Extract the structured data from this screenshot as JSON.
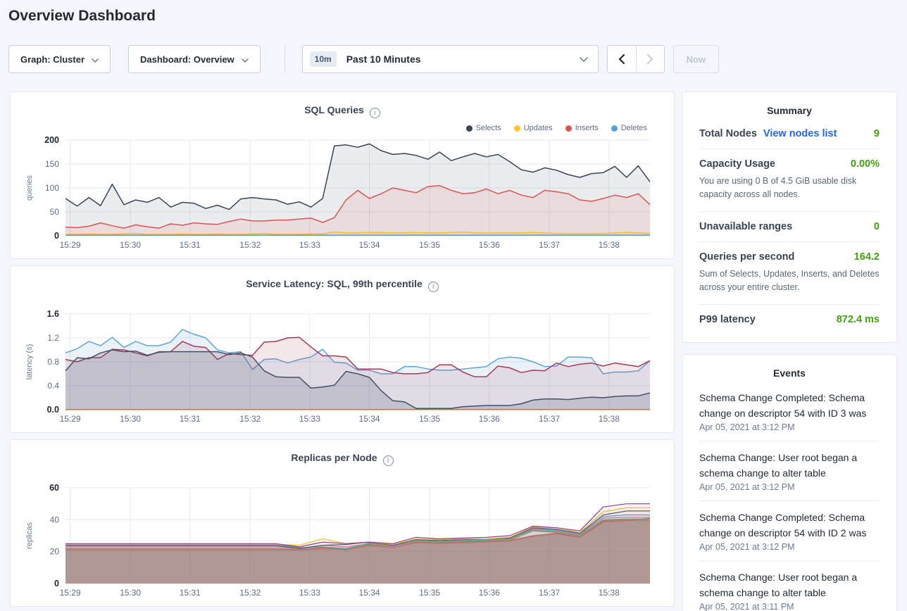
{
  "page": {
    "title": "Overview Dashboard"
  },
  "colors": {
    "accent_green": "#42a10c",
    "link_blue": "#2567ec",
    "selects_navy": "#394455",
    "updates_yellow": "#ffc333",
    "inserts_red": "#e05252",
    "deletes_blue": "#56a0d9"
  },
  "toolbar": {
    "graph": "Graph: Cluster",
    "dashboard": "Dashboard: Overview",
    "range_badge": "10m",
    "range_label": "Past 10 Minutes",
    "now": "Now"
  },
  "summary": {
    "title": "Summary",
    "total_nodes_label": "Total Nodes",
    "view_nodes_link": "View nodes list",
    "total_nodes_value": "9",
    "capacity_label": "Capacity Usage",
    "capacity_value": "0.00%",
    "capacity_desc": "You are using 0 B of 4.5 GiB usable disk capacity across all nodes.",
    "unavailable_label": "Unavailable ranges",
    "unavailable_value": "0",
    "qps_label": "Queries per second",
    "qps_value": "164.2",
    "qps_desc": "Sum of Selects, Updates, Inserts, and Deletes across your entire cluster.",
    "p99_label": "P99 latency",
    "p99_value": "872.4 ms"
  },
  "events": {
    "title": "Events",
    "items": [
      {
        "text": "Schema Change Completed: Schema change on descriptor 54 with ID 3 was",
        "time": "Apr 05, 2021 at 3:12 PM"
      },
      {
        "text": "Schema Change: User root began a schema change to alter table",
        "time": "Apr 05, 2021 at 3:12 PM"
      },
      {
        "text": "Schema Change Completed: Schema change on descriptor 54 with ID 2 was",
        "time": "Apr 05, 2021 at 3:12 PM"
      },
      {
        "text": "Schema Change: User root began a schema change to alter table",
        "time": "Apr 05, 2021 at 3:11 PM"
      }
    ]
  },
  "chart_data": [
    {
      "type": "area",
      "title": "SQL Queries",
      "ylabel": "queries",
      "ylim": [
        0,
        200
      ],
      "yticks": [
        0,
        50,
        100,
        150,
        200
      ],
      "ytick_labels": [
        "0",
        "50",
        "100",
        "150",
        "200"
      ],
      "legend_position": "top-right",
      "grid": true,
      "xticks": [
        {
          "label": "15:29",
          "f": 0.008
        },
        {
          "label": "15:30",
          "f": 0.111
        },
        {
          "label": "15:31",
          "f": 0.213
        },
        {
          "label": "15:32",
          "f": 0.316
        },
        {
          "label": "15:33",
          "f": 0.418
        },
        {
          "label": "15:34",
          "f": 0.52
        },
        {
          "label": "15:35",
          "f": 0.623
        },
        {
          "label": "15:36",
          "f": 0.725
        },
        {
          "label": "15:37",
          "f": 0.828
        },
        {
          "label": "15:38",
          "f": 0.93
        }
      ],
      "series": [
        {
          "name": "Selects",
          "color": "#394455",
          "fill": "rgba(57,68,85,0.10)",
          "values": [
            78,
            62,
            80,
            63,
            108,
            65,
            75,
            70,
            80,
            60,
            70,
            68,
            57,
            64,
            55,
            77,
            80,
            77,
            75,
            66,
            71,
            60,
            78,
            188,
            190,
            185,
            192,
            178,
            170,
            172,
            168,
            160,
            175,
            157,
            165,
            172,
            165,
            170,
            155,
            138,
            133,
            142,
            137,
            128,
            122,
            130,
            132,
            145,
            122,
            146,
            113
          ]
        },
        {
          "name": "Updates",
          "color": "#ffc333",
          "fill": "rgba(255,195,51,0.10)",
          "values": [
            3,
            3,
            4,
            3,
            3,
            4,
            5,
            3,
            3,
            3,
            4,
            3,
            3,
            4,
            3,
            3,
            4,
            5,
            3,
            3,
            3,
            4,
            4,
            8,
            6,
            6,
            7,
            7,
            6,
            6,
            7,
            6,
            6,
            7,
            8,
            6,
            6,
            6,
            6,
            6,
            7,
            6,
            5,
            5,
            5,
            5,
            5,
            6,
            7,
            6,
            5
          ]
        },
        {
          "name": "Inserts",
          "color": "#e05252",
          "fill": "rgba(224,82,82,0.10)",
          "values": [
            18,
            17,
            20,
            27,
            21,
            16,
            23,
            19,
            16,
            25,
            22,
            27,
            25,
            24,
            30,
            35,
            31,
            31,
            33,
            33,
            35,
            37,
            28,
            38,
            75,
            95,
            78,
            88,
            100,
            95,
            90,
            103,
            105,
            95,
            88,
            90,
            98,
            88,
            95,
            85,
            80,
            95,
            92,
            88,
            75,
            72,
            78,
            85,
            80,
            88,
            65
          ]
        },
        {
          "name": "Deletes",
          "color": "#56a0d9",
          "fill": "rgba(86,160,217,0.12)",
          "values": [
            1.5,
            1.5
          ]
        }
      ]
    },
    {
      "type": "area",
      "title": "Service Latency: SQL, 99th percentile",
      "ylabel": "latency (s)",
      "ylim": [
        0,
        1.6
      ],
      "yticks": [
        0,
        0.4,
        0.8,
        1.2,
        1.6
      ],
      "ytick_labels": [
        "0.0",
        "0.4",
        "0.8",
        "1.2",
        "1.6"
      ],
      "legend_position": "none",
      "grid": true,
      "xticks": [
        {
          "label": "15:29",
          "f": 0.008
        },
        {
          "label": "15:30",
          "f": 0.111
        },
        {
          "label": "15:31",
          "f": 0.213
        },
        {
          "label": "15:32",
          "f": 0.316
        },
        {
          "label": "15:33",
          "f": 0.418
        },
        {
          "label": "15:34",
          "f": 0.52
        },
        {
          "label": "15:35",
          "f": 0.623
        },
        {
          "label": "15:36",
          "f": 0.725
        },
        {
          "label": "15:37",
          "f": 0.828
        },
        {
          "label": "15:38",
          "f": 0.93
        }
      ],
      "series": [
        {
          "color": "#61a5d8",
          "fill": "rgba(97,165,216,0.14)",
          "values": [
            0.95,
            1.02,
            1.14,
            1.07,
            1.21,
            1.04,
            1.14,
            1.07,
            1.07,
            1.13,
            1.34,
            1.26,
            1.2,
            1.0,
            0.95,
            0.97,
            0.67,
            0.84,
            0.85,
            0.78,
            0.84,
            0.88,
            1.01,
            0.79,
            0.78,
            0.66,
            0.66,
            0.6,
            0.6,
            0.72,
            0.72,
            0.68,
            0.66,
            0.66,
            0.68,
            0.7,
            0.72,
            0.85,
            0.88,
            0.86,
            0.8,
            0.72,
            0.73,
            0.88,
            0.88,
            0.87,
            0.6,
            0.63,
            0.63,
            0.65,
            0.82
          ]
        },
        {
          "color": "#a33b56",
          "fill": "rgba(163,59,86,0.12)",
          "values": [
            0.84,
            0.8,
            0.87,
            0.87,
            1.01,
            1.0,
            0.95,
            0.9,
            0.97,
            0.97,
            1.14,
            1.06,
            1.04,
            0.84,
            0.94,
            0.92,
            0.91,
            1.13,
            1.14,
            1.2,
            1.21,
            1.05,
            0.9,
            0.9,
            0.88,
            0.68,
            0.68,
            0.68,
            0.62,
            0.6,
            0.6,
            0.62,
            0.75,
            0.75,
            0.63,
            0.55,
            0.55,
            0.73,
            0.7,
            0.62,
            0.66,
            0.65,
            0.78,
            0.72,
            0.76,
            0.78,
            0.73,
            0.78,
            0.75,
            0.72,
            0.82
          ]
        },
        {
          "color": "#435066",
          "fill": "rgba(67,80,102,0.18)",
          "values": [
            0.65,
            0.87,
            0.85,
            0.95,
            1.0,
            0.97,
            0.98,
            0.91,
            0.96,
            0.97,
            0.97,
            0.97,
            0.97,
            0.97,
            0.92,
            0.95,
            0.88,
            0.65,
            0.55,
            0.54,
            0.54,
            0.36,
            0.38,
            0.41,
            0.64,
            0.6,
            0.54,
            0.32,
            0.15,
            0.13,
            0.02,
            0.02,
            0.02,
            0.02,
            0.05,
            0.06,
            0.07,
            0.07,
            0.07,
            0.1,
            0.16,
            0.18,
            0.18,
            0.17,
            0.19,
            0.21,
            0.2,
            0.22,
            0.23,
            0.23,
            0.28
          ]
        },
        {
          "color": "#c9703f",
          "values": [
            0.004,
            0.004
          ]
        }
      ]
    },
    {
      "type": "area",
      "title": "Replicas per Node",
      "ylabel": "replicas",
      "ylim": [
        0,
        60
      ],
      "yticks": [
        0,
        20,
        40,
        60
      ],
      "ytick_labels": [
        "0",
        "20",
        "40",
        "60"
      ],
      "legend_position": "none",
      "grid": true,
      "xticks": [
        {
          "label": "15:29",
          "f": 0.008
        },
        {
          "label": "15:30",
          "f": 0.111
        },
        {
          "label": "15:31",
          "f": 0.213
        },
        {
          "label": "15:32",
          "f": 0.316
        },
        {
          "label": "15:33",
          "f": 0.418
        },
        {
          "label": "15:34",
          "f": 0.52
        },
        {
          "label": "15:35",
          "f": 0.623
        },
        {
          "label": "15:36",
          "f": 0.725
        },
        {
          "label": "15:37",
          "f": 0.828
        },
        {
          "label": "15:38",
          "f": 0.93
        }
      ],
      "series": [
        {
          "color": "#a98a7e",
          "w": 1.2,
          "fill": "rgba(122,75,66,0.45)",
          "values": [
            21,
            21,
            21,
            21,
            21,
            21,
            21,
            21,
            21,
            21,
            21,
            21.5,
            21.5,
            23.5,
            23,
            25.5,
            25,
            25.5,
            26,
            26.5,
            29.5,
            31,
            29,
            38.5,
            39.5,
            39.5
          ]
        },
        {
          "color": "#b98a6a",
          "w": 1.2,
          "fill": "rgba(185,138,106,0.06)",
          "values": [
            21.5,
            21.5,
            21.5,
            21.5,
            21.5,
            21.5,
            21.5,
            21.5,
            21.5,
            21.5,
            21.5,
            22,
            22,
            24,
            23.5,
            26,
            25.5,
            26,
            26.5,
            27,
            33,
            32,
            29.5,
            39.5,
            40,
            40
          ]
        },
        {
          "color": "#db5d5a",
          "w": 1.2,
          "fill": "rgba(219,93,90,0.06)",
          "values": [
            22,
            22,
            22,
            22,
            22,
            22,
            22,
            22,
            22,
            22,
            21,
            22.5,
            21,
            24.5,
            22.5,
            26,
            25.5,
            26,
            26.5,
            27,
            30,
            31.5,
            29,
            39,
            39.5,
            41
          ]
        },
        {
          "color": "#e77fae",
          "w": 1.2,
          "fill": "rgba(231,127,174,0.06)",
          "values": [
            23,
            23,
            23,
            23,
            23,
            23,
            23,
            23,
            23,
            23,
            21.5,
            24,
            23,
            25,
            23,
            26.5,
            26,
            26.5,
            27,
            27.5,
            34,
            33,
            30.5,
            41,
            41.5,
            41.5
          ]
        },
        {
          "color": "#5c9fd4",
          "w": 1.2,
          "fill": "rgba(92,159,212,0.06)",
          "values": [
            23.5,
            23.5,
            23.5,
            23.5,
            23.5,
            23.5,
            23.5,
            23.5,
            23.5,
            23.5,
            22,
            23,
            21.5,
            25.5,
            23.5,
            27,
            26.5,
            27,
            27.5,
            28,
            34.5,
            33.5,
            31,
            42,
            43,
            43
          ]
        },
        {
          "color": "#4fb586",
          "w": 1.2,
          "fill": "rgba(79,181,134,0.06)",
          "values": [
            24.7,
            24.7,
            24.7,
            24.7,
            24.7,
            24.7,
            24.7,
            24.7,
            24.7,
            24.7,
            22.5,
            23,
            22,
            25,
            24,
            27,
            26,
            26.5,
            27,
            28,
            33.5,
            32.5,
            30,
            40,
            40.5,
            40.5
          ]
        },
        {
          "color": "#50596b",
          "w": 1.2,
          "fill": "rgba(80,89,107,0.06)",
          "values": [
            24,
            24,
            24,
            24,
            24,
            24,
            24,
            24,
            24,
            24,
            22,
            24,
            24.5,
            26,
            24,
            27.5,
            27,
            27.5,
            28,
            28.5,
            35,
            34,
            31.5,
            43,
            45.5,
            45.5
          ]
        },
        {
          "color": "#f2be2c",
          "w": 1.2,
          "fill": "rgba(242,190,44,0.06)",
          "values": [
            24.5,
            24.5,
            24.5,
            24.5,
            24.5,
            24.5,
            24.5,
            24.5,
            24.5,
            24.5,
            24,
            28,
            25,
            26,
            24.5,
            28,
            27.5,
            28,
            28,
            29,
            35.5,
            35,
            32,
            45,
            47.5,
            47.5
          ]
        },
        {
          "color": "#8f3e8c",
          "w": 1.2,
          "fill": "rgba(143,62,140,0.06)",
          "values": [
            25,
            25,
            25,
            25,
            25,
            25,
            25,
            25,
            25,
            25,
            23,
            26,
            25,
            26,
            25,
            29,
            28,
            28.5,
            29,
            30,
            36,
            35,
            33,
            48,
            50,
            50
          ]
        }
      ]
    }
  ]
}
